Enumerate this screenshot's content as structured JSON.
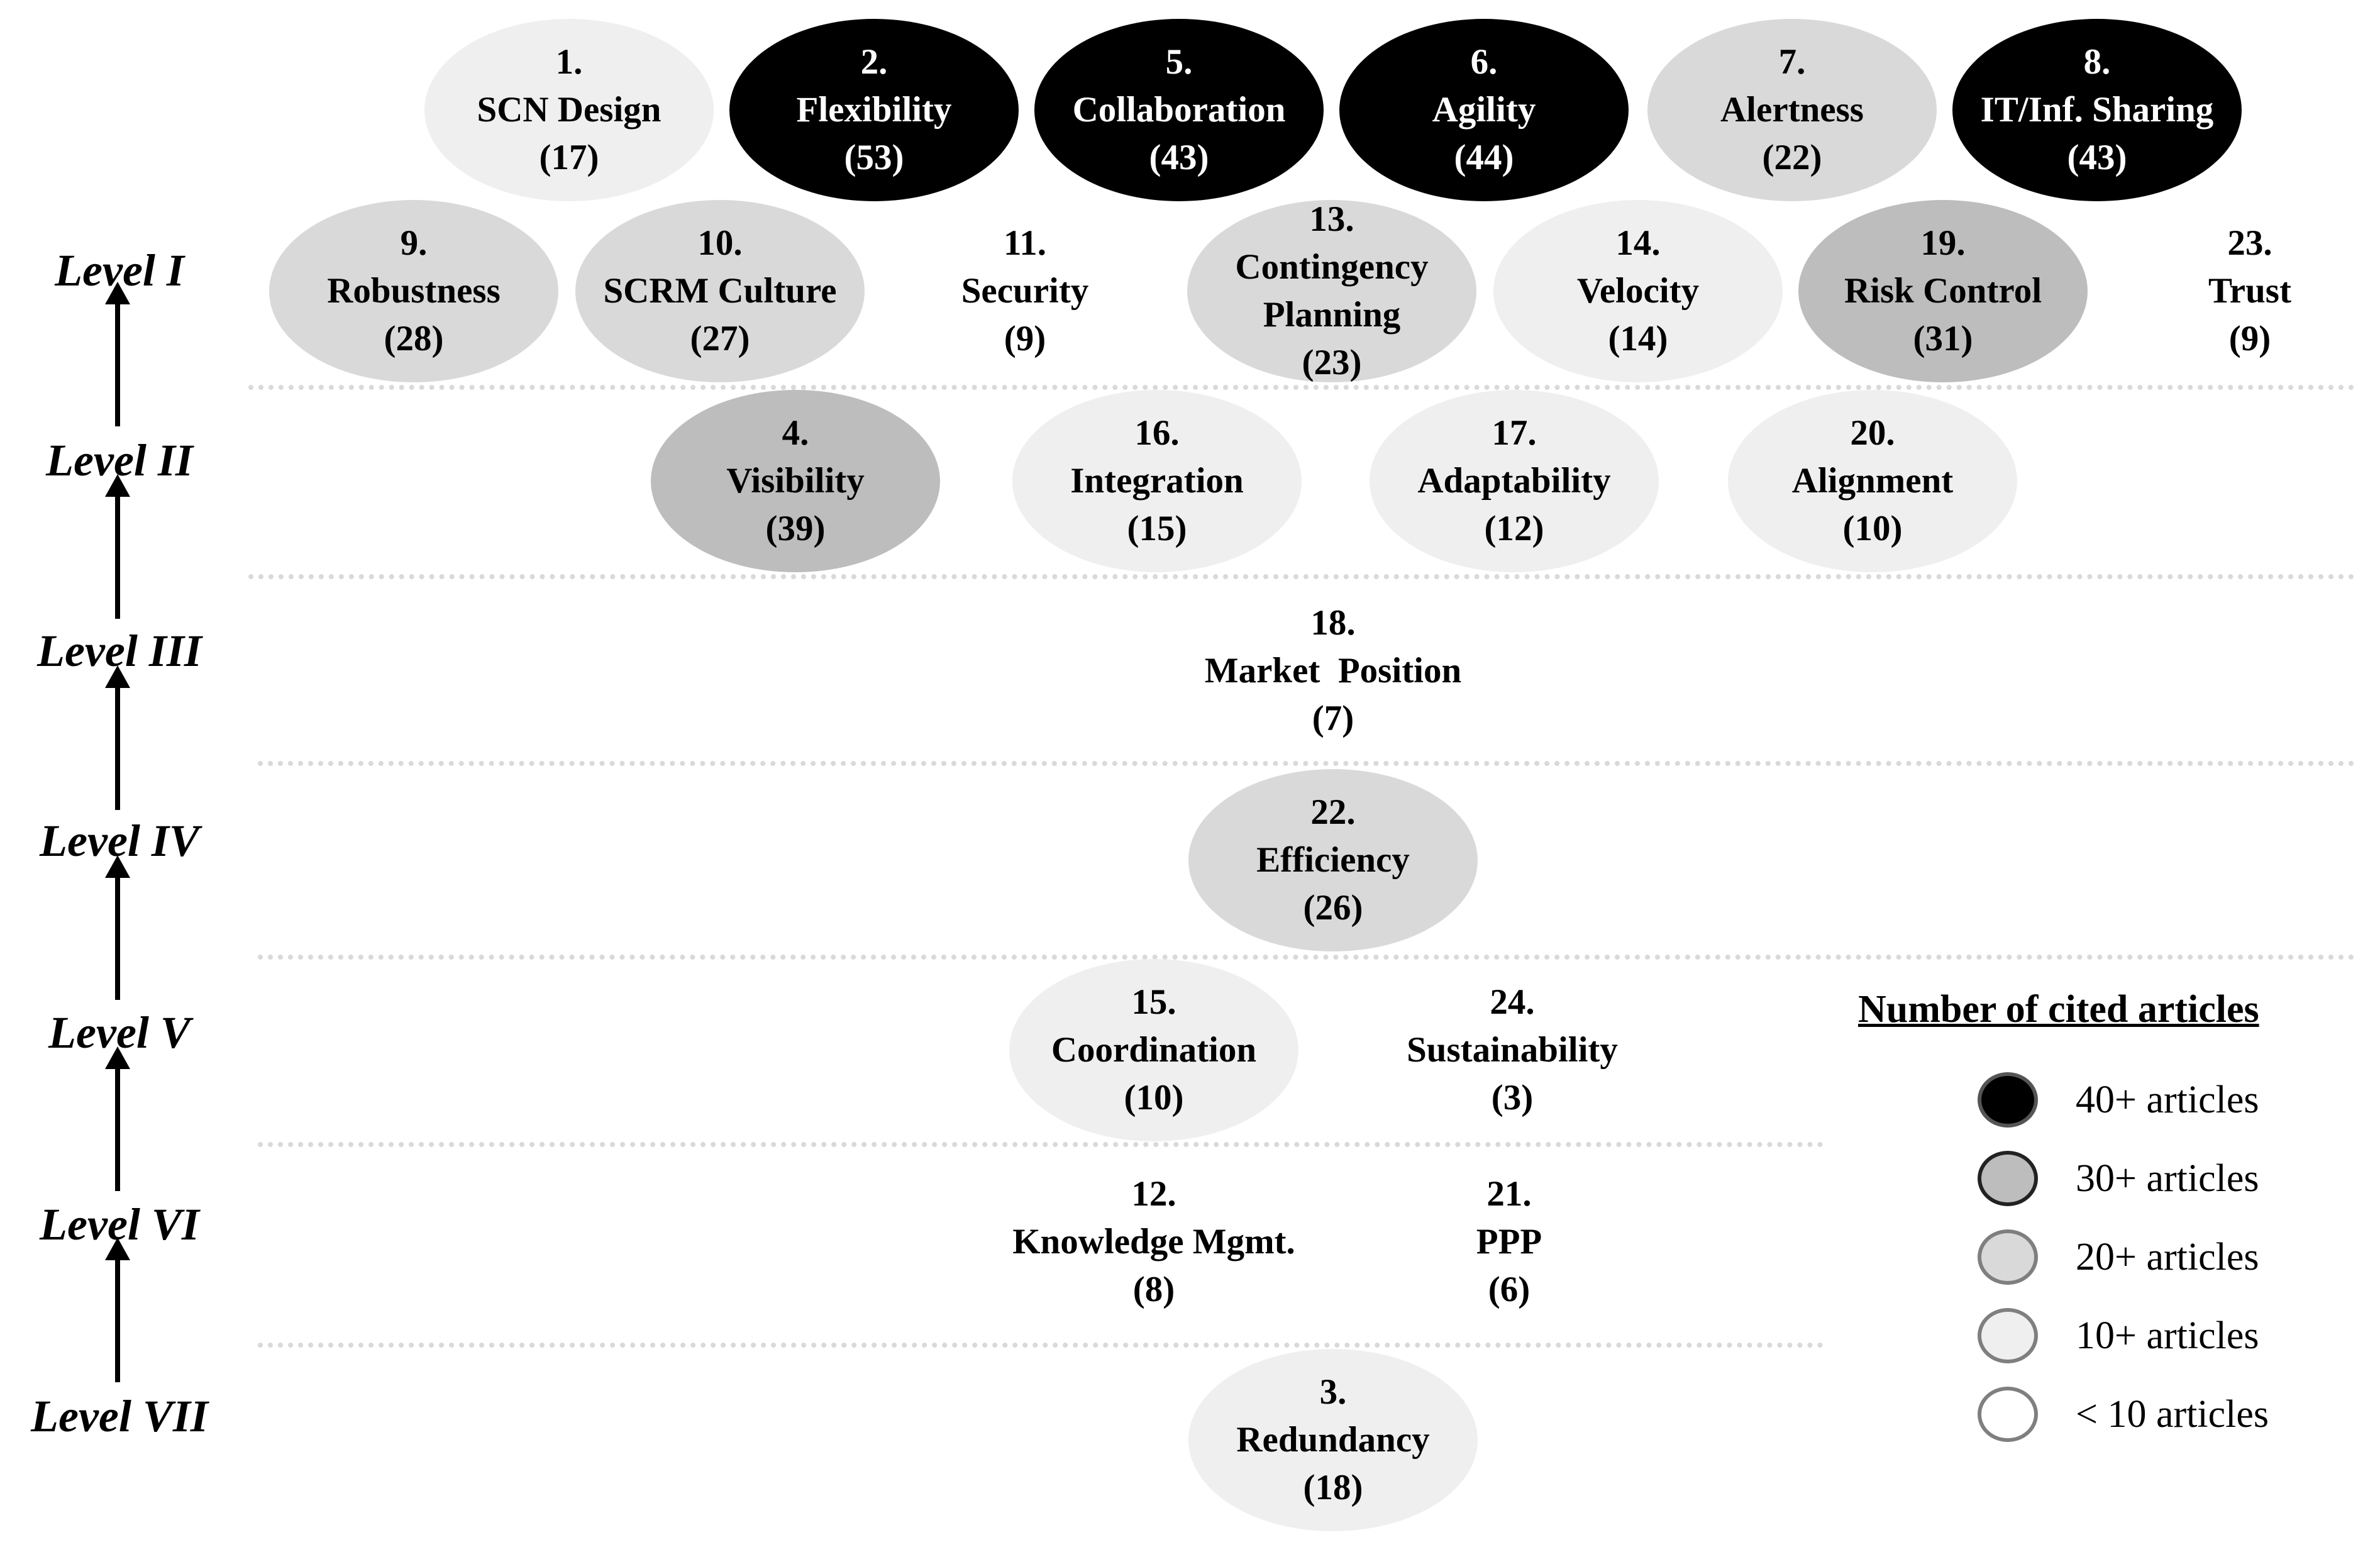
{
  "levels": [
    "Level I",
    "Level II",
    "Level III",
    "Level IV",
    "Level V",
    "Level VI",
    "Level VII"
  ],
  "nodes": [
    {
      "num": "1.",
      "name": "SCN Design",
      "count": "(17)",
      "shade": "10+"
    },
    {
      "num": "2.",
      "name": "Flexibility",
      "count": "(53)",
      "shade": "40+"
    },
    {
      "num": "5.",
      "name": "Collaboration",
      "count": "(43)",
      "shade": "40+"
    },
    {
      "num": "6.",
      "name": "Agility",
      "count": "(44)",
      "shade": "40+"
    },
    {
      "num": "7.",
      "name": "Alertness",
      "count": "(22)",
      "shade": "20+"
    },
    {
      "num": "8.",
      "name": "IT/Inf. Sharing",
      "count": "(43)",
      "shade": "40+"
    },
    {
      "num": "9.",
      "name": "Robustness",
      "count": "(28)",
      "shade": "20+"
    },
    {
      "num": "10.",
      "name": "SCRM Culture",
      "count": "(27)",
      "shade": "20+"
    },
    {
      "num": "11.",
      "name": "Security",
      "count": "(9)",
      "shade": "<10"
    },
    {
      "num": "13.",
      "name": "Contingency",
      "name2": "Planning",
      "count": "(23)",
      "shade": "20+"
    },
    {
      "num": "14.",
      "name": "Velocity",
      "count": "(14)",
      "shade": "10+"
    },
    {
      "num": "19.",
      "name": "Risk Control",
      "count": "(31)",
      "shade": "30+"
    },
    {
      "num": "23.",
      "name": "Trust",
      "count": "(9)",
      "shade": "<10"
    },
    {
      "num": "4.",
      "name": "Visibility",
      "count": "(39)",
      "shade": "30+"
    },
    {
      "num": "16.",
      "name": "Integration",
      "count": "(15)",
      "shade": "10+"
    },
    {
      "num": "17.",
      "name": "Adaptability",
      "count": "(12)",
      "shade": "10+"
    },
    {
      "num": "20.",
      "name": "Alignment",
      "count": "(10)",
      "shade": "10+"
    },
    {
      "num": "18.",
      "name": "Market  Position",
      "count": "(7)",
      "shade": "<10"
    },
    {
      "num": "22.",
      "name": "Efficiency",
      "count": "(26)",
      "shade": "20+"
    },
    {
      "num": "15.",
      "name": "Coordination",
      "count": "(10)",
      "shade": "10+"
    },
    {
      "num": "24.",
      "name": "Sustainability",
      "count": "(3)",
      "shade": "<10"
    },
    {
      "num": "12.",
      "name": "Knowledge Mgmt.",
      "count": "(8)",
      "shade": "<10"
    },
    {
      "num": "21.",
      "name": "PPP",
      "count": "(6)",
      "shade": "<10"
    },
    {
      "num": "3.",
      "name": "Redundancy",
      "count": "(18)",
      "shade": "10+"
    }
  ],
  "legend": {
    "title": "Number of cited articles",
    "items": [
      {
        "label": "40+ articles",
        "color": "#000000"
      },
      {
        "label": "30+ articles",
        "color": "#bdbdbd"
      },
      {
        "label": "20+ articles",
        "color": "#d9d9d9"
      },
      {
        "label": "10+ articles",
        "color": "#efefef"
      },
      {
        "label": "< 10 articles",
        "color": "#ffffff"
      }
    ]
  }
}
